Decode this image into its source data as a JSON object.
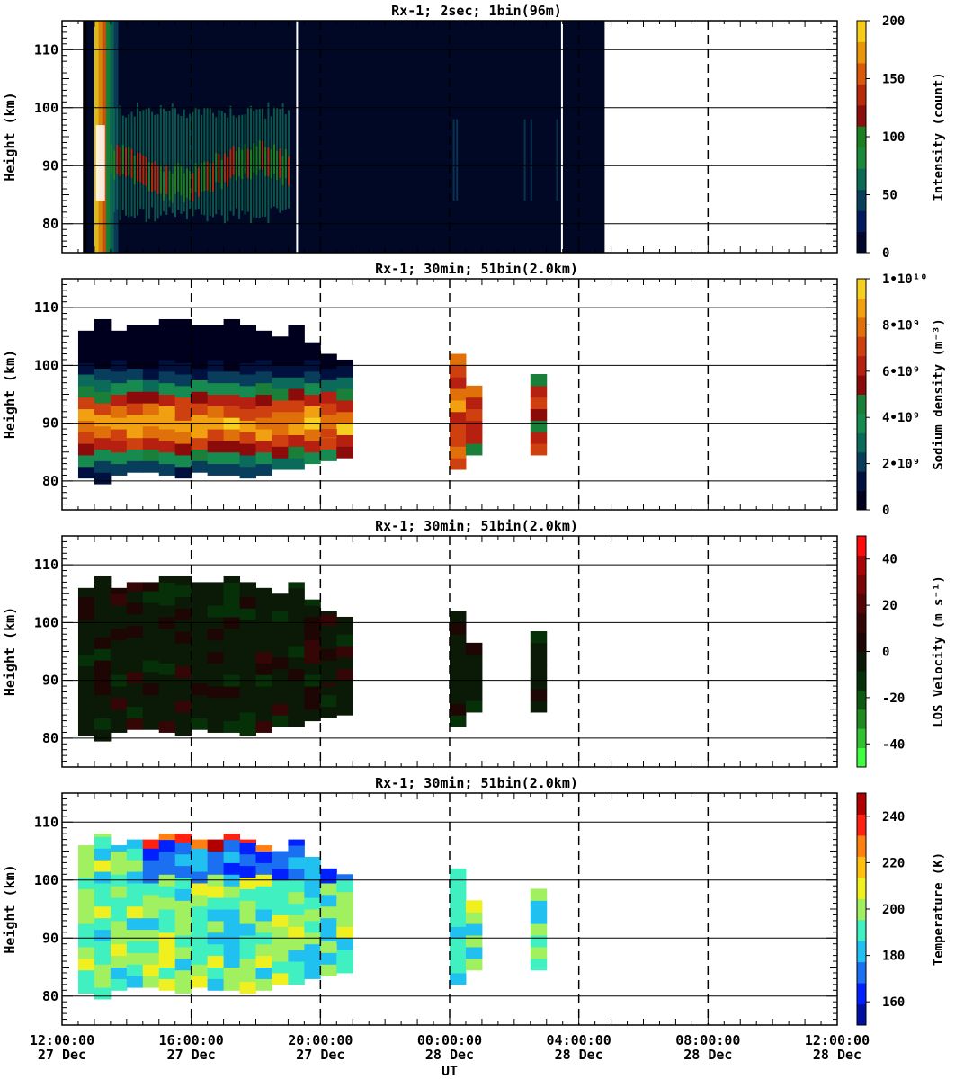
{
  "figure": {
    "xlabel": "UT",
    "x_ticks": [
      {
        "time": "12:00:00",
        "date": "27 Dec"
      },
      {
        "time": "16:00:00",
        "date": "27 Dec"
      },
      {
        "time": "20:00:00",
        "date": "27 Dec"
      },
      {
        "time": "00:00:00",
        "date": "28 Dec"
      },
      {
        "time": "04:00:00",
        "date": "28 Dec"
      },
      {
        "time": "08:00:00",
        "date": "28 Dec"
      },
      {
        "time": "12:00:00",
        "date": "28 Dec"
      }
    ],
    "x_range_hours": [
      0,
      24
    ]
  },
  "chart_data": [
    {
      "type": "heatmap",
      "title": "Rx-1;  2sec; 1bin(96m)",
      "ylabel": "Height (km)",
      "yticks": [
        80,
        90,
        100,
        110
      ],
      "ylim": [
        75,
        115
      ],
      "colorbar": {
        "label": "Intensity (count)",
        "ticks": [
          "0",
          "50",
          "100",
          "150",
          "200"
        ],
        "range": [
          0,
          200
        ],
        "colors": [
          "#000830",
          "#001a60",
          "#0a3f5a",
          "#0d6a55",
          "#1a8a3a",
          "#1c8020",
          "#8a1010",
          "#b82a0a",
          "#d95a0a",
          "#e8960a",
          "#f5cd1a"
        ]
      },
      "data_span_hours": [
        0.65,
        16.8
      ],
      "gap_lines_hours": [
        7.25,
        15.45
      ]
    },
    {
      "type": "heatmap",
      "title": "Rx-1; 30min; 51bin(2.0km)",
      "ylabel": "Height (km)",
      "yticks": [
        80,
        90,
        100,
        110
      ],
      "ylim": [
        75,
        115
      ],
      "colorbar": {
        "label": "Sodium density (m⁻³)",
        "ticks": [
          "0",
          "2•10⁹",
          "4•10⁹",
          "6•10⁹",
          "8•10⁹",
          "1•10¹⁰"
        ],
        "range": [
          0,
          10000000000.0
        ],
        "colors": [
          "#00001e",
          "#00103f",
          "#083d5c",
          "#0b6a5a",
          "#178a50",
          "#1a7f38",
          "#8b0a0a",
          "#b52010",
          "#cf4010",
          "#e0700a",
          "#f0a010",
          "#f5d020"
        ]
      }
    },
    {
      "type": "heatmap",
      "title": "Rx-1; 30min; 51bin(2.0km)",
      "ylabel": "Height (km)",
      "yticks": [
        80,
        90,
        100,
        110
      ],
      "ylim": [
        75,
        115
      ],
      "colorbar": {
        "label": "LOS Velocity (m s⁻¹)",
        "ticks": [
          "-40",
          "-20",
          "0",
          "20",
          "40"
        ],
        "range": [
          -50,
          50
        ],
        "colors": [
          "#40ff40",
          "#30c030",
          "#208a20",
          "#0d5a10",
          "#063008",
          "#0a1a06",
          "#1e0604",
          "#350606",
          "#550606",
          "#7a0606",
          "#a80606",
          "#ff0a0a"
        ]
      }
    },
    {
      "type": "heatmap",
      "title": "Rx-1; 30min; 51bin(2.0km)",
      "ylabel": "Height (km)",
      "yticks": [
        80,
        90,
        100,
        110
      ],
      "ylim": [
        75,
        115
      ],
      "colorbar": {
        "label": "Temperature (K)",
        "ticks": [
          "160",
          "180",
          "200",
          "220",
          "240"
        ],
        "range": [
          150,
          250
        ],
        "colors": [
          "#0010a0",
          "#0020ff",
          "#1a70f0",
          "#20c0f0",
          "#40f0c0",
          "#a0f060",
          "#f0f020",
          "#ffc010",
          "#ff8010",
          "#ff2010",
          "#b00000"
        ]
      }
    }
  ]
}
